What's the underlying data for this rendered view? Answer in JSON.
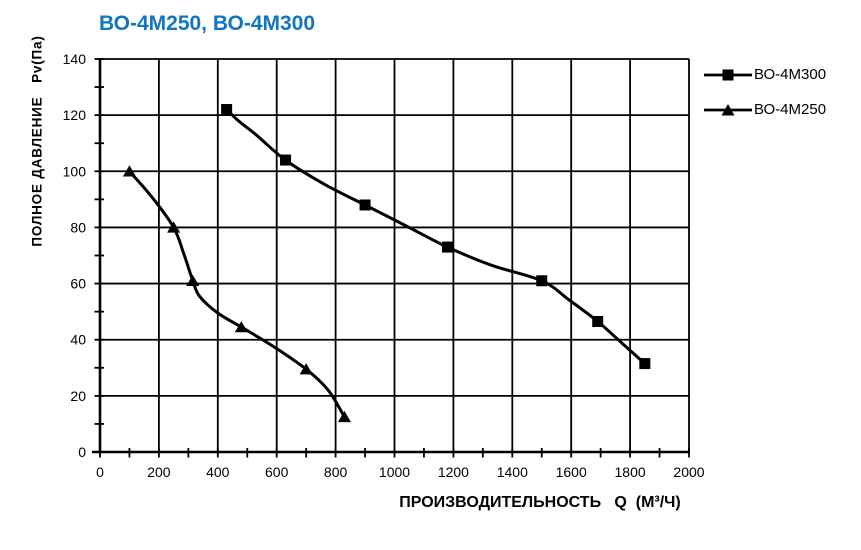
{
  "window": {
    "background": "#ffffff"
  },
  "chart_data": {
    "type": "line",
    "title": "ВО-4М250, ВО-4М300",
    "title_color": "#1076bf",
    "line_color": "#000000",
    "text_color": "#000000",
    "xlabel": "ПРОИЗВОДИТЕЛЬНОСТЬ   Q  (М³/Ч)",
    "ylabel": "ПОЛНОЕ ДАВЛЕНИЕ   Pv(Па)",
    "xlim": [
      0,
      2000
    ],
    "ylim": [
      0,
      140
    ],
    "x_ticks": [
      0,
      200,
      400,
      600,
      800,
      1000,
      1200,
      1400,
      1600,
      1800,
      2000
    ],
    "y_ticks": [
      0,
      20,
      40,
      60,
      80,
      100,
      120,
      140
    ],
    "x_minor_step": 100,
    "y_minor_step": 10,
    "grid": true,
    "legend_position": "top-right",
    "series": [
      {
        "name": "ВО-4М300",
        "marker": "square",
        "points": [
          [
            430,
            122
          ],
          [
            630,
            104
          ],
          [
            900,
            88
          ],
          [
            1180,
            73
          ],
          [
            1500,
            61
          ],
          [
            1690,
            46.5
          ],
          [
            1850,
            31.5
          ]
        ],
        "curve": [
          [
            430,
            122
          ],
          [
            470,
            118
          ],
          [
            530,
            113
          ],
          [
            630,
            104
          ],
          [
            760,
            95.5
          ],
          [
            900,
            88
          ],
          [
            1040,
            80.5
          ],
          [
            1180,
            73
          ],
          [
            1330,
            66.5
          ],
          [
            1500,
            61
          ],
          [
            1595,
            54
          ],
          [
            1690,
            46.5
          ],
          [
            1770,
            39
          ],
          [
            1850,
            31.5
          ]
        ]
      },
      {
        "name": "ВО-4М250",
        "marker": "triangle",
        "points": [
          [
            100,
            100
          ],
          [
            250,
            80
          ],
          [
            315,
            61
          ],
          [
            480,
            44.5
          ],
          [
            700,
            29.5
          ],
          [
            830,
            12.5
          ]
        ],
        "curve": [
          [
            100,
            100
          ],
          [
            175,
            91
          ],
          [
            250,
            80
          ],
          [
            285,
            70.5
          ],
          [
            315,
            61
          ],
          [
            338,
            55.5
          ],
          [
            400,
            49.5
          ],
          [
            480,
            44.5
          ],
          [
            590,
            37.5
          ],
          [
            700,
            29.5
          ],
          [
            775,
            22
          ],
          [
            830,
            12.5
          ]
        ]
      }
    ]
  }
}
